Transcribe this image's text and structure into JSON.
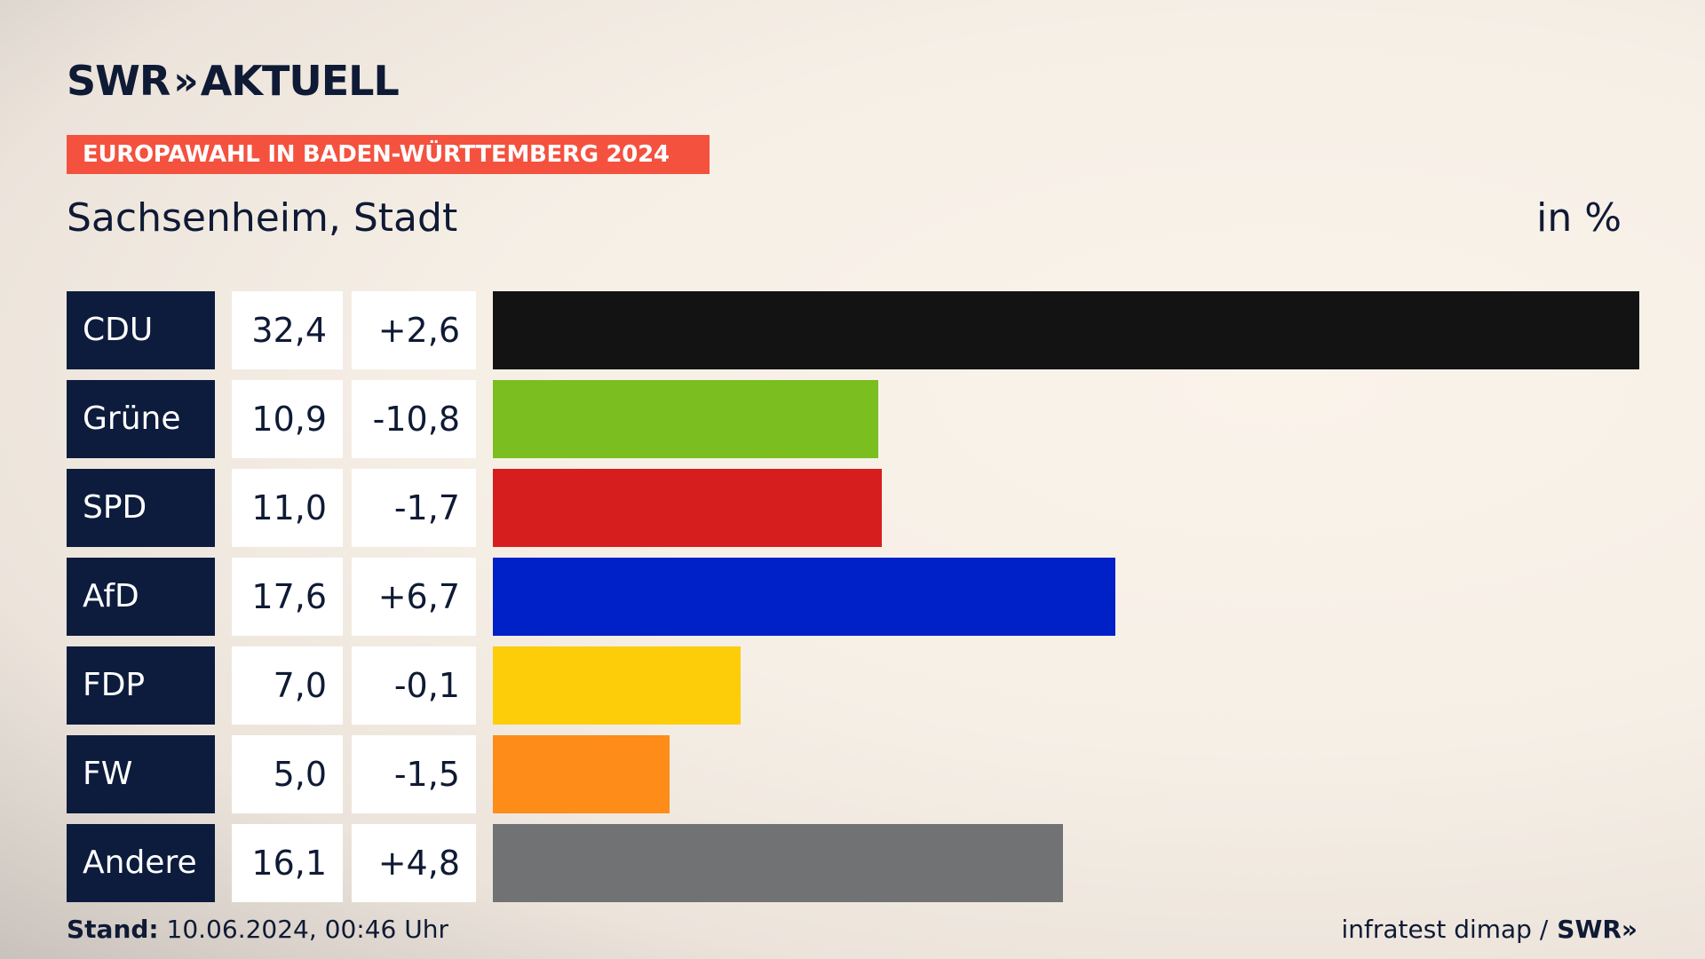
{
  "header": {
    "logo_text": "SWR",
    "logo_chevrons": "»",
    "logo_suffix": "AKTUELL",
    "banner": "EUROPAWAHL IN BADEN-WÜRTTEMBERG 2024",
    "subtitle": "Sachsenheim, Stadt",
    "unit": "in %"
  },
  "chart_data": {
    "type": "bar",
    "orientation": "horizontal",
    "categories": [
      "CDU",
      "Grüne",
      "SPD",
      "AfD",
      "FDP",
      "FW",
      "Andere"
    ],
    "values": [
      32.4,
      10.9,
      11.0,
      17.6,
      7.0,
      5.0,
      16.1
    ],
    "values_display": [
      "32,4",
      "10,9",
      "11,0",
      "17,6",
      "7,0",
      "5,0",
      "16,1"
    ],
    "diffs_display": [
      "+2,6",
      "-10,8",
      "-1,7",
      "+6,7",
      "-0,1",
      "-1,5",
      "+4,8"
    ],
    "colors": [
      "#131313",
      "#7abe1f",
      "#d61e1e",
      "#0020c8",
      "#fdcd09",
      "#fd8c19",
      "#717273"
    ],
    "xlim": [
      0,
      32.4
    ]
  },
  "footer": {
    "stand_label": "Stand:",
    "stand_value": "10.06.2024, 00:46 Uhr",
    "source": "infratest dimap /",
    "source_logo": "SWR»"
  }
}
